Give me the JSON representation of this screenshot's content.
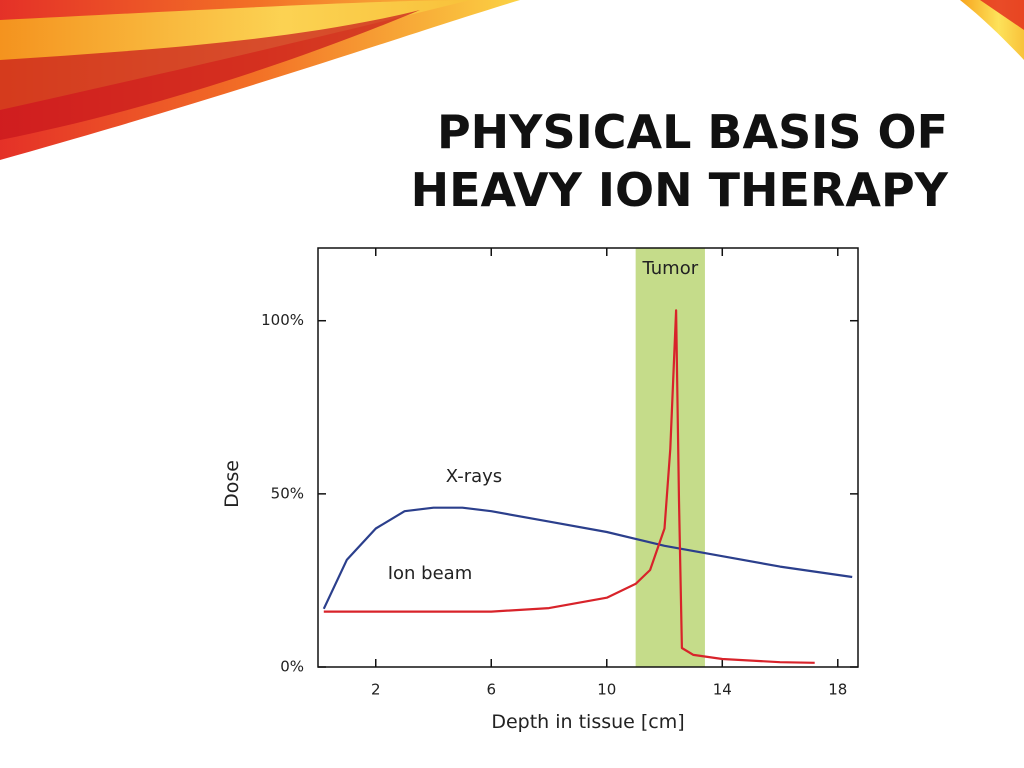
{
  "chart_data": {
    "type": "line",
    "title": [
      "PHYSICAL BASIS OF",
      "HEAVY ION THERAPY"
    ],
    "xlabel": "Depth in tissue [cm]",
    "ylabel": "Dose",
    "xlim": [
      0,
      18.7
    ],
    "ylim": [
      0,
      121
    ],
    "xticks": [
      2,
      6,
      10,
      14,
      18
    ],
    "yticks": [
      {
        "value": 0,
        "label": "0%"
      },
      {
        "value": 50,
        "label": "50%"
      },
      {
        "value": 100,
        "label": "100%"
      }
    ],
    "band": {
      "label": "Tumor",
      "x": [
        11,
        13.4
      ],
      "color": "#c5dc8a"
    },
    "series": [
      {
        "name": "X-rays",
        "color": "#2b3f8c",
        "x": [
          0.2,
          1,
          2,
          3,
          4,
          5,
          6,
          8,
          10,
          12,
          14,
          16,
          18.5
        ],
        "values": [
          16.8,
          31,
          40,
          45,
          46,
          46,
          45,
          42,
          39,
          35,
          32,
          29,
          26
        ]
      },
      {
        "name": "Ion beam",
        "color": "#d8232a",
        "x": [
          0.2,
          1,
          4,
          6,
          8,
          10,
          11,
          11.5,
          12,
          12.2,
          12.4,
          12.5,
          12.6,
          13,
          14,
          16,
          17.2
        ],
        "values": [
          16,
          16,
          16,
          16,
          17,
          20,
          24,
          28,
          40,
          63,
          103,
          48,
          5.5,
          3.5,
          2.3,
          1.4,
          1.2
        ]
      }
    ]
  }
}
